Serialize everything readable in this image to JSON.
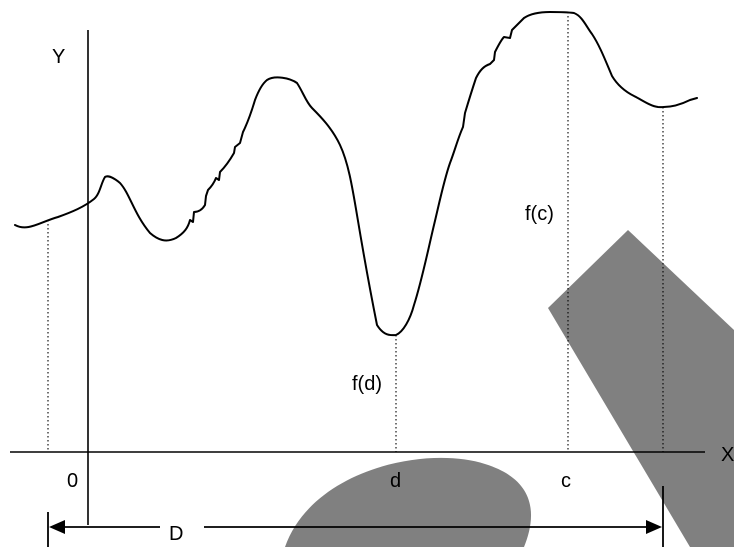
{
  "labels": {
    "y_axis": "Y",
    "x_axis": "X",
    "origin": "0",
    "point_d": "d",
    "point_c": "c",
    "value_fd": "f(d)",
    "value_fc": "f(c)",
    "domain": "D"
  },
  "colors": {
    "ink": "#000000",
    "watermark": "#808080",
    "background": "#ffffff"
  }
}
